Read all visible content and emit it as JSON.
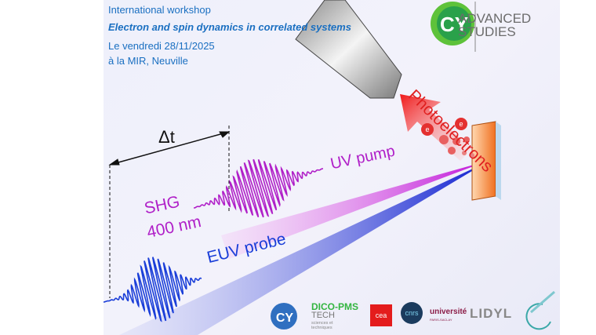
{
  "header": {
    "line1": "International workshop",
    "title": "Electron and spin dynamics in correlated systems",
    "date": "Le vendredi 28/11/2025",
    "place": "à la MIR, Neuville"
  },
  "diagram": {
    "delay_label": "Δt",
    "pump_source": "SHG",
    "pump_wavelength": "400 nm",
    "pump_label": "UV pump",
    "probe_label": "EUV probe",
    "emission_label": "Photoelectrons",
    "electron_symbol": "e"
  },
  "logos": {
    "cy_advanced": "ADVANCED STUDIES",
    "cy_mark": "CY",
    "dico": "DICO-PMS",
    "tech": "TECH",
    "sciences": "sciences et techniques",
    "cea": "cea",
    "cnrs": "cnrs",
    "universite": "université",
    "paris_saclay": "PARIS-SACLAY",
    "lidyl": "LIDYL"
  },
  "colors": {
    "title_blue": "#1a6fc1",
    "pump_magenta": "#b020c8",
    "probe_blue": "#1a3ed8",
    "photo_red": "#e02020",
    "cy_green": "#33b540"
  }
}
